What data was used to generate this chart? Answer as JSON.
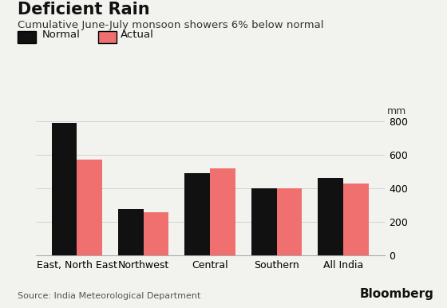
{
  "title": "Deficient Rain",
  "subtitle": "Cumulative June-July monsoon showers 6% below normal",
  "source": "Source: India Meteorological Department",
  "categories": [
    "East, North East",
    "Northwest",
    "Central",
    "Southern",
    "All India"
  ],
  "normal": [
    790,
    275,
    490,
    400,
    460
  ],
  "actual": [
    570,
    258,
    520,
    398,
    430
  ],
  "normal_color": "#111111",
  "actual_color": "#f07070",
  "background_color": "#f2f2ee",
  "ylim": [
    0,
    860
  ],
  "yticks": [
    0,
    200,
    400,
    600,
    800
  ],
  "ylabel": "mm",
  "bar_width": 0.38,
  "title_fontsize": 15,
  "subtitle_fontsize": 9.5,
  "tick_fontsize": 9,
  "legend_fontsize": 9.5,
  "source_fontsize": 8,
  "bloomberg_fontsize": 11
}
